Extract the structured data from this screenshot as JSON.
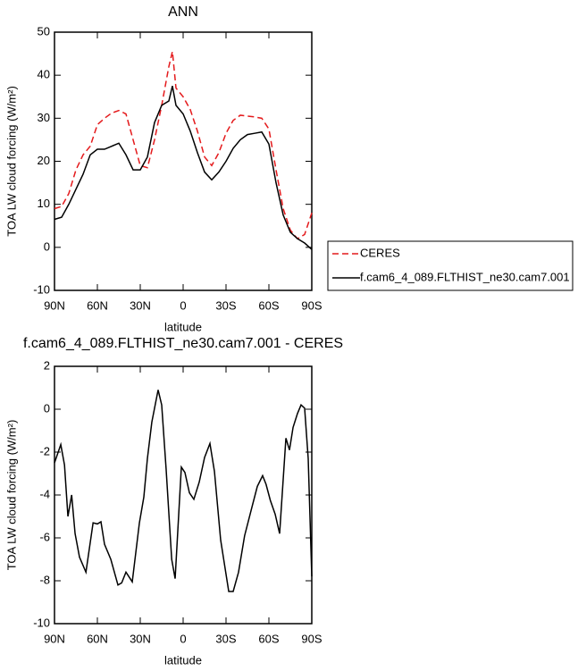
{
  "chart_data": [
    {
      "type": "line",
      "title": "ANN",
      "x_label": "latitude",
      "y_label": "TOA LW cloud forcing (W/m²)",
      "x": [
        90,
        85,
        80,
        75,
        70,
        65,
        60,
        55,
        50,
        45,
        40,
        35,
        30,
        25,
        20,
        15,
        10,
        7.5,
        5,
        0,
        -5,
        -10,
        -15,
        -20,
        -25,
        -30,
        -35,
        -40,
        -45,
        -50,
        -55,
        -60,
        -65,
        -70,
        -75,
        -80,
        -85,
        -90
      ],
      "series": [
        {
          "name": "CERES",
          "color": "#e41a1c",
          "style": "dashed",
          "values": [
            9,
            9.5,
            12.5,
            18,
            21.5,
            23.5,
            28.5,
            30,
            31.2,
            31.8,
            31,
            25,
            19,
            18.5,
            25,
            33,
            42,
            45.5,
            37,
            35,
            32,
            27,
            21,
            19,
            22,
            26.5,
            29.5,
            30.7,
            30.5,
            30.3,
            30,
            27.5,
            18,
            9,
            4,
            2,
            3,
            8
          ]
        },
        {
          "name": "f.cam6_4_089.FLTHIST_ne30.cam7.001",
          "color": "#000000",
          "style": "solid",
          "values": [
            6.5,
            7,
            10,
            13.5,
            17,
            21.5,
            22.8,
            22.8,
            23.5,
            24.2,
            21.5,
            18,
            18,
            21,
            29,
            33,
            34,
            37.5,
            33,
            31,
            27,
            22,
            17.5,
            15.7,
            17.5,
            20,
            23,
            25,
            26.2,
            26.5,
            26.8,
            24,
            15,
            7.5,
            3.5,
            2,
            1,
            -0.5
          ]
        }
      ],
      "xlim": [
        90,
        -90
      ],
      "xticks": [
        {
          "value": 90,
          "label": "90N"
        },
        {
          "value": 60,
          "label": "60N"
        },
        {
          "value": 30,
          "label": "30N"
        },
        0,
        {
          "value": -30,
          "label": "30S"
        },
        {
          "value": -60,
          "label": "60S"
        },
        {
          "value": -90,
          "label": "90S"
        }
      ],
      "ylim": [
        -10,
        50
      ],
      "yticks": [
        -10,
        0,
        10,
        20,
        30,
        40,
        50
      ],
      "legend": "right"
    },
    {
      "type": "line",
      "title": "f.cam6_4_089.FLTHIST_ne30.cam7.001 - CERES",
      "x_label": "latitude",
      "y_label": "TOA LW cloud forcing (W/m²)",
      "x": [
        90,
        85.6,
        83,
        80.6,
        78,
        75.6,
        72.5,
        68,
        63,
        60,
        57.5,
        55,
        50.6,
        45.6,
        43,
        40,
        35.6,
        30.6,
        27.5,
        25,
        21.9,
        17.5,
        15,
        11.9,
        8,
        5.6,
        1.25,
        -1.25,
        -4.4,
        -7.5,
        -11.25,
        -15,
        -18.75,
        -21.9,
        -26.25,
        -31.9,
        -35,
        -38.75,
        -43,
        -48,
        -51.9,
        -55.6,
        -58,
        -61,
        -64.4,
        -67.5,
        -71.9,
        -74.4,
        -76.9,
        -80,
        -82.5,
        -85,
        -87.5,
        -90
      ],
      "series": [
        {
          "color": "#000000",
          "style": "solid",
          "values": [
            -2.5,
            -1.65,
            -2.6,
            -5,
            -4,
            -5.8,
            -6.9,
            -7.6,
            -5.3,
            -5.35,
            -5.25,
            -6.3,
            -7,
            -8.2,
            -8.1,
            -7.6,
            -8.05,
            -5.3,
            -4.1,
            -2.3,
            -0.6,
            0.9,
            0.2,
            -2.8,
            -7,
            -7.9,
            -2.7,
            -2.95,
            -3.9,
            -4.2,
            -3.4,
            -2.25,
            -1.6,
            -2.9,
            -6.1,
            -8.5,
            -8.5,
            -7.6,
            -5.9,
            -4.6,
            -3.6,
            -3.1,
            -3.5,
            -4.25,
            -4.9,
            -5.8,
            -1.35,
            -1.9,
            -0.85,
            -0.2,
            0.2,
            0.05,
            -2.3,
            -7.8
          ]
        }
      ],
      "xlim": [
        90,
        -90
      ],
      "xticks": [
        {
          "value": 90,
          "label": "90N"
        },
        {
          "value": 60,
          "label": "60N"
        },
        {
          "value": 30,
          "label": "30N"
        },
        0,
        {
          "value": -30,
          "label": "30S"
        },
        {
          "value": -60,
          "label": "60S"
        },
        {
          "value": -90,
          "label": "90S"
        }
      ],
      "ylim": [
        -10,
        2
      ],
      "yticks": [
        -10,
        -8,
        -6,
        -4,
        -2,
        0,
        2
      ]
    }
  ]
}
